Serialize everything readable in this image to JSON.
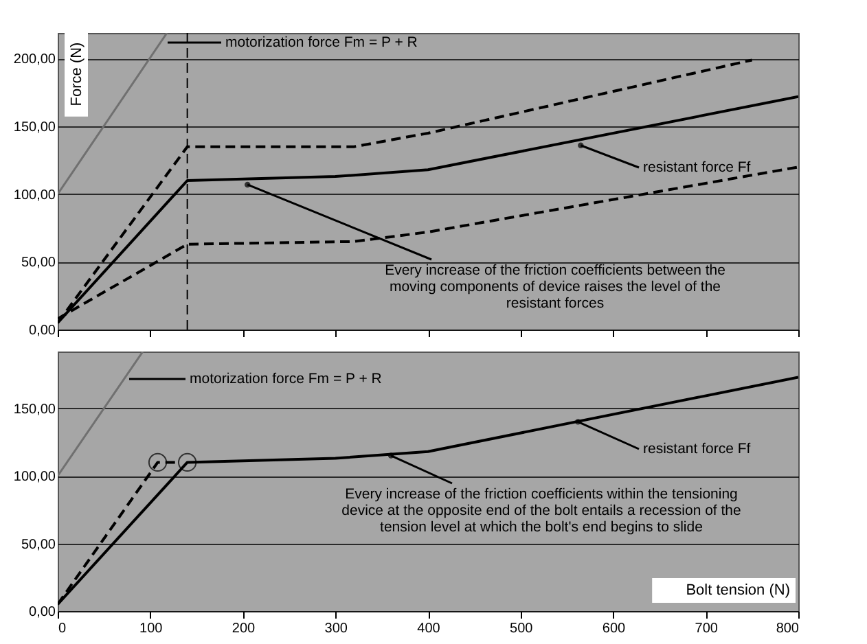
{
  "chart_data": [
    {
      "type": "line",
      "ylabel": "Force (N)",
      "xlim": [
        0,
        800
      ],
      "ylim": [
        0,
        219
      ],
      "xticks": [
        {
          "value": 0,
          "label": null
        },
        {
          "value": 100,
          "label": null
        },
        {
          "value": 200,
          "label": null
        },
        {
          "value": 300,
          "label": null
        },
        {
          "value": 400,
          "label": null
        },
        {
          "value": 500,
          "label": null
        },
        {
          "value": 600,
          "label": null
        },
        {
          "value": 700,
          "label": null
        },
        {
          "value": 800,
          "label": null
        }
      ],
      "yticks": [
        {
          "value": 0,
          "label": "0,00"
        },
        {
          "value": 50,
          "label": "50,00"
        },
        {
          "value": 100,
          "label": "100,00"
        },
        {
          "value": 150,
          "label": "150,00"
        },
        {
          "value": 200,
          "label": "200,00"
        }
      ],
      "grid": "y",
      "tick_labels": "y",
      "series": [
        {
          "color": "#707070",
          "line_style": "solid",
          "x": [
            0,
            118
          ],
          "values": [
            100,
            219
          ]
        },
        {
          "color": "#000000",
          "line_style": "solid",
          "x": [
            0,
            140,
            300,
            400,
            800
          ],
          "values": [
            5,
            110,
            113,
            118,
            172
          ]
        },
        {
          "color": "#000000",
          "line_style": "dashed",
          "x": [
            0,
            140,
            320,
            400,
            750
          ],
          "values": [
            5,
            135,
            135,
            145,
            199
          ]
        },
        {
          "color": "#000000",
          "line_style": "dashed",
          "x": [
            0,
            140,
            320,
            400,
            800
          ],
          "values": [
            8,
            63,
            65,
            72,
            120
          ]
        }
      ],
      "ref_lines": [
        {
          "axis": "x",
          "value": 140,
          "line_style": "dashed",
          "color": "#000000"
        }
      ],
      "annotations": [
        "motorization force Fm = P + R",
        {
          "text": "resistant force Ff",
          "x": 565,
          "y": 136
        },
        {
          "text": "Every increase of the friction coefficients between the moving components of device raises the level of the resistant forces",
          "x": 205,
          "y": 107
        }
      ]
    },
    {
      "type": "line",
      "xlabel": "Bolt tension (N)",
      "xlim": [
        0,
        800
      ],
      "ylim": [
        0,
        192
      ],
      "xticks": [
        0,
        100,
        200,
        300,
        400,
        500,
        600,
        700,
        800
      ],
      "yticks": [
        {
          "value": 0,
          "label": "0,00"
        },
        {
          "value": 50,
          "label": "50,00"
        },
        {
          "value": 100,
          "label": "100,00"
        },
        {
          "value": 150,
          "label": "150,00"
        }
      ],
      "grid": "y",
      "series": [
        {
          "color": "#707070",
          "line_style": "solid",
          "x": [
            0,
            92
          ],
          "values": [
            100,
            192
          ]
        },
        {
          "color": "#000000",
          "line_style": "solid",
          "x": [
            0,
            140,
            300,
            400,
            800
          ],
          "values": [
            5,
            110,
            113,
            118,
            173
          ]
        },
        {
          "color": "#000000",
          "line_style": "dashed",
          "x": [
            0,
            108,
            128
          ],
          "values": [
            5,
            110,
            110
          ]
        },
        {
          "type": "scatter",
          "marker": "circle",
          "color": "#000000",
          "x": [
            108,
            140
          ],
          "values": [
            110,
            110
          ]
        }
      ],
      "annotations": [
        "motorization force Fm = P + R",
        {
          "text": "resistant force Ff",
          "x": 562,
          "y": 140
        },
        {
          "text": "Every increase of the friction coefficients within the tensioning device at the opposite end of the bolt entails a recession of the tension level at which the bolt's end begins to slide",
          "x": 360,
          "y": 115
        }
      ]
    }
  ]
}
